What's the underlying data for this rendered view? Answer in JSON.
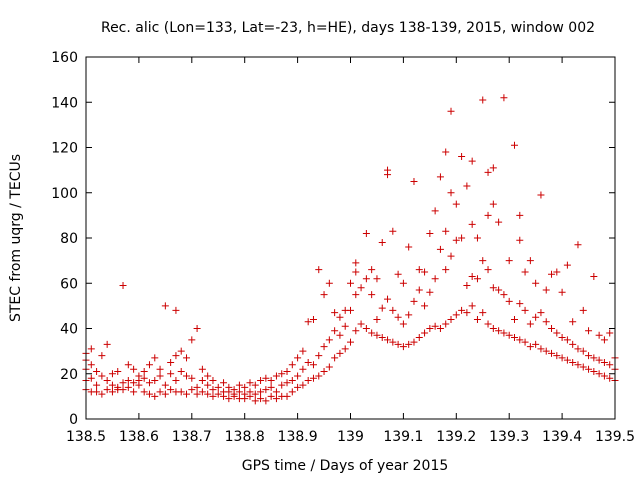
{
  "chart_data": {
    "type": "scatter",
    "title": "Rec. alic (Lon=133, Lat=-23, h=HE), days 138-139, 2015, window 002",
    "xlabel": "GPS time / Days of year 2015",
    "ylabel": "STEC from uqrg / TECUs",
    "xlim": [
      138.5,
      139.5
    ],
    "ylim": [
      0,
      160
    ],
    "xticks": [
      138.5,
      138.6,
      138.7,
      138.8,
      138.9,
      139,
      139.1,
      139.2,
      139.3,
      139.4,
      139.5
    ],
    "xtick_labels": [
      "138.5",
      "138.6",
      "138.7",
      "138.8",
      "138.9",
      "139",
      "139.1",
      "139.2",
      "139.3",
      "139.4",
      "139.5"
    ],
    "yticks": [
      0,
      20,
      40,
      60,
      80,
      100,
      120,
      140,
      160
    ],
    "ytick_labels": [
      "0",
      "20",
      "40",
      "60",
      "80",
      "100",
      "120",
      "140",
      "160"
    ],
    "grid": false,
    "marker": "+",
    "marker_color": "#cc0000",
    "points": [
      [
        138.5,
        13
      ],
      [
        138.5,
        17
      ],
      [
        138.5,
        22
      ],
      [
        138.5,
        26
      ],
      [
        138.5,
        29
      ],
      [
        138.51,
        31
      ],
      [
        138.51,
        12
      ],
      [
        138.51,
        18
      ],
      [
        138.51,
        24
      ],
      [
        138.52,
        12
      ],
      [
        138.52,
        15
      ],
      [
        138.52,
        21
      ],
      [
        138.53,
        11
      ],
      [
        138.53,
        19
      ],
      [
        138.53,
        28
      ],
      [
        138.54,
        33
      ],
      [
        138.54,
        13
      ],
      [
        138.54,
        17
      ],
      [
        138.55,
        12
      ],
      [
        138.55,
        15
      ],
      [
        138.55,
        20
      ],
      [
        138.56,
        13
      ],
      [
        138.56,
        14
      ],
      [
        138.56,
        21
      ],
      [
        138.57,
        13
      ],
      [
        138.57,
        16
      ],
      [
        138.57,
        59
      ],
      [
        138.58,
        14
      ],
      [
        138.58,
        17
      ],
      [
        138.58,
        24
      ],
      [
        138.59,
        12
      ],
      [
        138.59,
        16
      ],
      [
        138.59,
        22
      ],
      [
        138.6,
        15
      ],
      [
        138.6,
        17
      ],
      [
        138.6,
        19
      ],
      [
        138.61,
        12
      ],
      [
        138.61,
        18
      ],
      [
        138.61,
        21
      ],
      [
        138.62,
        11
      ],
      [
        138.62,
        16
      ],
      [
        138.62,
        24
      ],
      [
        138.63,
        10
      ],
      [
        138.63,
        17
      ],
      [
        138.63,
        27
      ],
      [
        138.64,
        12
      ],
      [
        138.64,
        19
      ],
      [
        138.64,
        22
      ],
      [
        138.65,
        11
      ],
      [
        138.65,
        15
      ],
      [
        138.65,
        50
      ],
      [
        138.66,
        13
      ],
      [
        138.66,
        20
      ],
      [
        138.66,
        25
      ],
      [
        138.67,
        12
      ],
      [
        138.67,
        17
      ],
      [
        138.67,
        28
      ],
      [
        138.67,
        48
      ],
      [
        138.68,
        12
      ],
      [
        138.68,
        21
      ],
      [
        138.68,
        30
      ],
      [
        138.69,
        11
      ],
      [
        138.69,
        19
      ],
      [
        138.69,
        27
      ],
      [
        138.7,
        13
      ],
      [
        138.7,
        18
      ],
      [
        138.7,
        35
      ],
      [
        138.71,
        11
      ],
      [
        138.71,
        14
      ],
      [
        138.71,
        40
      ],
      [
        138.72,
        12
      ],
      [
        138.72,
        17
      ],
      [
        138.72,
        22
      ],
      [
        138.73,
        11
      ],
      [
        138.73,
        15
      ],
      [
        138.73,
        19
      ],
      [
        138.74,
        10
      ],
      [
        138.74,
        13
      ],
      [
        138.74,
        17
      ],
      [
        138.75,
        11
      ],
      [
        138.75,
        14
      ],
      [
        138.76,
        10
      ],
      [
        138.76,
        12
      ],
      [
        138.76,
        16
      ],
      [
        138.77,
        9
      ],
      [
        138.77,
        12
      ],
      [
        138.77,
        14
      ],
      [
        138.78,
        10
      ],
      [
        138.78,
        11
      ],
      [
        138.78,
        13
      ],
      [
        138.79,
        9
      ],
      [
        138.79,
        12
      ],
      [
        138.79,
        15
      ],
      [
        138.8,
        9
      ],
      [
        138.8,
        11
      ],
      [
        138.8,
        14
      ],
      [
        138.81,
        10
      ],
      [
        138.81,
        12
      ],
      [
        138.81,
        16
      ],
      [
        138.82,
        8
      ],
      [
        138.82,
        11
      ],
      [
        138.82,
        15
      ],
      [
        138.83,
        9
      ],
      [
        138.83,
        12
      ],
      [
        138.83,
        17
      ],
      [
        138.84,
        8
      ],
      [
        138.84,
        13
      ],
      [
        138.84,
        18
      ],
      [
        138.85,
        10
      ],
      [
        138.85,
        14
      ],
      [
        138.85,
        17
      ],
      [
        138.86,
        9
      ],
      [
        138.86,
        12
      ],
      [
        138.86,
        19
      ],
      [
        138.87,
        10
      ],
      [
        138.87,
        15
      ],
      [
        138.87,
        20
      ],
      [
        138.88,
        10
      ],
      [
        138.88,
        16
      ],
      [
        138.88,
        21
      ],
      [
        138.89,
        12
      ],
      [
        138.89,
        17
      ],
      [
        138.89,
        24
      ],
      [
        138.9,
        14
      ],
      [
        138.9,
        19
      ],
      [
        138.9,
        27
      ],
      [
        138.91,
        15
      ],
      [
        138.91,
        22
      ],
      [
        138.91,
        30
      ],
      [
        138.92,
        17
      ],
      [
        138.92,
        25
      ],
      [
        138.92,
        43
      ],
      [
        138.93,
        18
      ],
      [
        138.93,
        24
      ],
      [
        138.93,
        44
      ],
      [
        138.94,
        19
      ],
      [
        138.94,
        28
      ],
      [
        138.94,
        66
      ],
      [
        138.95,
        21
      ],
      [
        138.95,
        32
      ],
      [
        138.95,
        55
      ],
      [
        138.96,
        23
      ],
      [
        138.96,
        35
      ],
      [
        138.96,
        60
      ],
      [
        138.97,
        27
      ],
      [
        138.97,
        39
      ],
      [
        138.97,
        47
      ],
      [
        138.98,
        29
      ],
      [
        138.98,
        37
      ],
      [
        138.98,
        45
      ],
      [
        138.99,
        31
      ],
      [
        138.99,
        41
      ],
      [
        138.99,
        48
      ],
      [
        139.0,
        34
      ],
      [
        139.0,
        48
      ],
      [
        139.0,
        60
      ],
      [
        139.01,
        39
      ],
      [
        139.01,
        55
      ],
      [
        139.01,
        65
      ],
      [
        139.01,
        69
      ],
      [
        139.02,
        42
      ],
      [
        139.02,
        58
      ],
      [
        139.03,
        40
      ],
      [
        139.03,
        62
      ],
      [
        139.03,
        82
      ],
      [
        139.04,
        38
      ],
      [
        139.04,
        55
      ],
      [
        139.04,
        66
      ],
      [
        139.05,
        37
      ],
      [
        139.05,
        44
      ],
      [
        139.05,
        62
      ],
      [
        139.06,
        36
      ],
      [
        139.06,
        49
      ],
      [
        139.06,
        78
      ],
      [
        139.07,
        35
      ],
      [
        139.07,
        53
      ],
      [
        139.07,
        110
      ],
      [
        139.07,
        108
      ],
      [
        139.08,
        34
      ],
      [
        139.08,
        48
      ],
      [
        139.08,
        83
      ],
      [
        139.09,
        33
      ],
      [
        139.09,
        45
      ],
      [
        139.09,
        64
      ],
      [
        139.1,
        32
      ],
      [
        139.1,
        42
      ],
      [
        139.1,
        60
      ],
      [
        139.11,
        33
      ],
      [
        139.11,
        46
      ],
      [
        139.11,
        76
      ],
      [
        139.12,
        34
      ],
      [
        139.12,
        52
      ],
      [
        139.12,
        105
      ],
      [
        139.13,
        36
      ],
      [
        139.13,
        57
      ],
      [
        139.13,
        66
      ],
      [
        139.14,
        38
      ],
      [
        139.14,
        50
      ],
      [
        139.14,
        65
      ],
      [
        139.15,
        40
      ],
      [
        139.15,
        56
      ],
      [
        139.15,
        82
      ],
      [
        139.16,
        41
      ],
      [
        139.16,
        62
      ],
      [
        139.16,
        92
      ],
      [
        139.17,
        40
      ],
      [
        139.17,
        75
      ],
      [
        139.17,
        107
      ],
      [
        139.18,
        42
      ],
      [
        139.18,
        66
      ],
      [
        139.18,
        83
      ],
      [
        139.18,
        118
      ],
      [
        139.19,
        44
      ],
      [
        139.19,
        72
      ],
      [
        139.19,
        100
      ],
      [
        139.19,
        136
      ],
      [
        139.2,
        46
      ],
      [
        139.2,
        79
      ],
      [
        139.2,
        95
      ],
      [
        139.21,
        48
      ],
      [
        139.21,
        80
      ],
      [
        139.21,
        116
      ],
      [
        139.22,
        47
      ],
      [
        139.22,
        59
      ],
      [
        139.22,
        103
      ],
      [
        139.23,
        50
      ],
      [
        139.23,
        63
      ],
      [
        139.23,
        86
      ],
      [
        139.23,
        114
      ],
      [
        139.24,
        44
      ],
      [
        139.24,
        62
      ],
      [
        139.24,
        80
      ],
      [
        139.25,
        47
      ],
      [
        139.25,
        70
      ],
      [
        139.25,
        141
      ],
      [
        139.26,
        42
      ],
      [
        139.26,
        66
      ],
      [
        139.26,
        90
      ],
      [
        139.26,
        109
      ],
      [
        139.27,
        40
      ],
      [
        139.27,
        58
      ],
      [
        139.27,
        95
      ],
      [
        139.27,
        111
      ],
      [
        139.28,
        39
      ],
      [
        139.28,
        57
      ],
      [
        139.28,
        87
      ],
      [
        139.29,
        38
      ],
      [
        139.29,
        55
      ],
      [
        139.29,
        142
      ],
      [
        139.3,
        37
      ],
      [
        139.3,
        52
      ],
      [
        139.3,
        70
      ],
      [
        139.31,
        36
      ],
      [
        139.31,
        44
      ],
      [
        139.31,
        121
      ],
      [
        139.32,
        35
      ],
      [
        139.32,
        51
      ],
      [
        139.32,
        79
      ],
      [
        139.32,
        90
      ],
      [
        139.33,
        34
      ],
      [
        139.33,
        48
      ],
      [
        139.33,
        65
      ],
      [
        139.34,
        32
      ],
      [
        139.34,
        42
      ],
      [
        139.34,
        70
      ],
      [
        139.35,
        33
      ],
      [
        139.35,
        45
      ],
      [
        139.35,
        60
      ],
      [
        139.36,
        31
      ],
      [
        139.36,
        47
      ],
      [
        139.36,
        99
      ],
      [
        139.37,
        30
      ],
      [
        139.37,
        43
      ],
      [
        139.37,
        57
      ],
      [
        139.38,
        29
      ],
      [
        139.38,
        40
      ],
      [
        139.38,
        64
      ],
      [
        139.39,
        28
      ],
      [
        139.39,
        38
      ],
      [
        139.39,
        65
      ],
      [
        139.4,
        27
      ],
      [
        139.4,
        36
      ],
      [
        139.4,
        56
      ],
      [
        139.41,
        26
      ],
      [
        139.41,
        35
      ],
      [
        139.41,
        68
      ],
      [
        139.42,
        25
      ],
      [
        139.42,
        33
      ],
      [
        139.42,
        43
      ],
      [
        139.43,
        24
      ],
      [
        139.43,
        31
      ],
      [
        139.43,
        77
      ],
      [
        139.44,
        23
      ],
      [
        139.44,
        30
      ],
      [
        139.44,
        48
      ],
      [
        139.45,
        22
      ],
      [
        139.45,
        28
      ],
      [
        139.45,
        39
      ],
      [
        139.46,
        21
      ],
      [
        139.46,
        27
      ],
      [
        139.46,
        63
      ],
      [
        139.47,
        20
      ],
      [
        139.47,
        26
      ],
      [
        139.47,
        37
      ],
      [
        139.48,
        19
      ],
      [
        139.48,
        25
      ],
      [
        139.48,
        35
      ],
      [
        139.49,
        18
      ],
      [
        139.49,
        24
      ],
      [
        139.49,
        38
      ],
      [
        139.5,
        17
      ],
      [
        139.5,
        22
      ],
      [
        139.5,
        27
      ]
    ]
  }
}
